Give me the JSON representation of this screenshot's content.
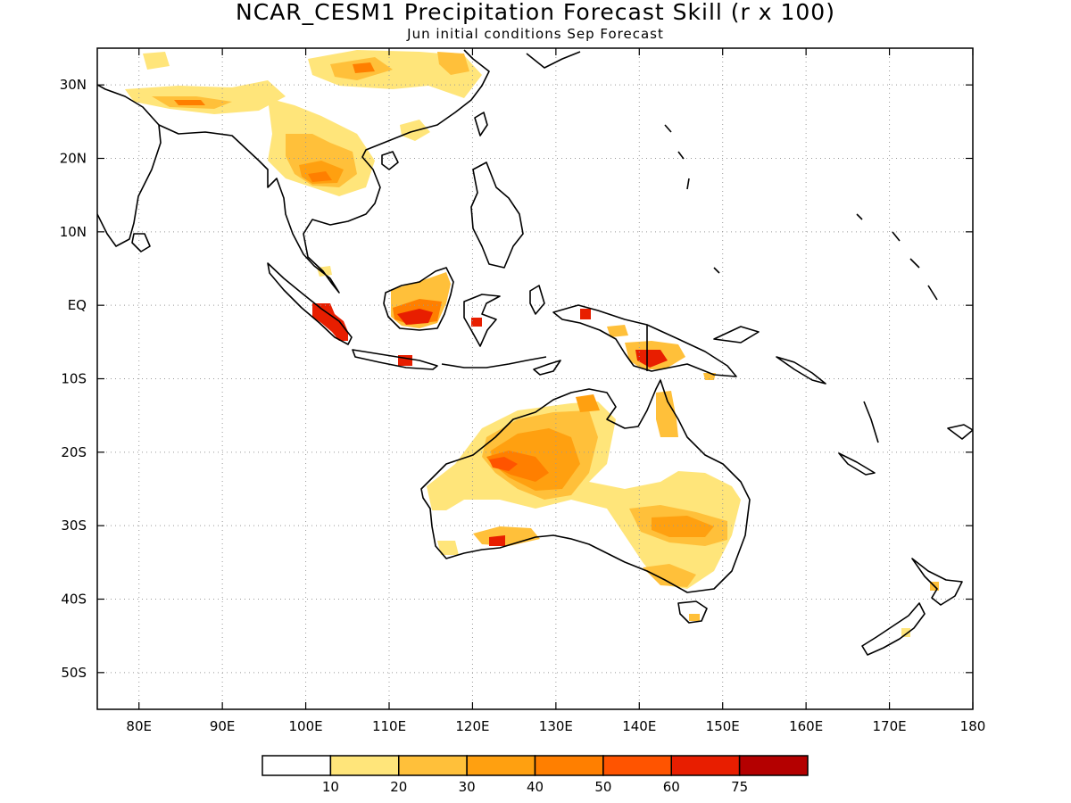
{
  "header": {
    "title": "NCAR_CESM1 Precipitation Forecast Skill (r x 100)",
    "subtitle": "Jun initial conditions  Sep Forecast"
  },
  "map": {
    "lon_range": [
      75,
      180
    ],
    "lat_range": [
      -55,
      35
    ],
    "lon_ticks": [
      {
        "value": 80,
        "label": "80E"
      },
      {
        "value": 90,
        "label": "90E"
      },
      {
        "value": 100,
        "label": "100E"
      },
      {
        "value": 110,
        "label": "110E"
      },
      {
        "value": 120,
        "label": "120E"
      },
      {
        "value": 130,
        "label": "130E"
      },
      {
        "value": 140,
        "label": "140E"
      },
      {
        "value": 150,
        "label": "150E"
      },
      {
        "value": 160,
        "label": "160E"
      },
      {
        "value": 170,
        "label": "170E"
      },
      {
        "value": 180,
        "label": "180"
      }
    ],
    "lat_ticks": [
      {
        "value": 30,
        "label": "30N"
      },
      {
        "value": 20,
        "label": "20N"
      },
      {
        "value": 10,
        "label": "10N"
      },
      {
        "value": 0,
        "label": "EQ"
      },
      {
        "value": -10,
        "label": "10S"
      },
      {
        "value": -20,
        "label": "20S"
      },
      {
        "value": -30,
        "label": "30S"
      },
      {
        "value": -40,
        "label": "40S"
      },
      {
        "value": -50,
        "label": "50S"
      }
    ],
    "grid": "dotted",
    "coast_color": "#000000"
  },
  "colorbar": {
    "colors": [
      "#ffffff",
      "#ffe57a",
      "#ffc03a",
      "#ffa010",
      "#ff7f00",
      "#ff5400",
      "#e81e00",
      "#b40000"
    ],
    "labels": [
      "10",
      "20",
      "30",
      "40",
      "50",
      "60",
      "75"
    ]
  }
}
